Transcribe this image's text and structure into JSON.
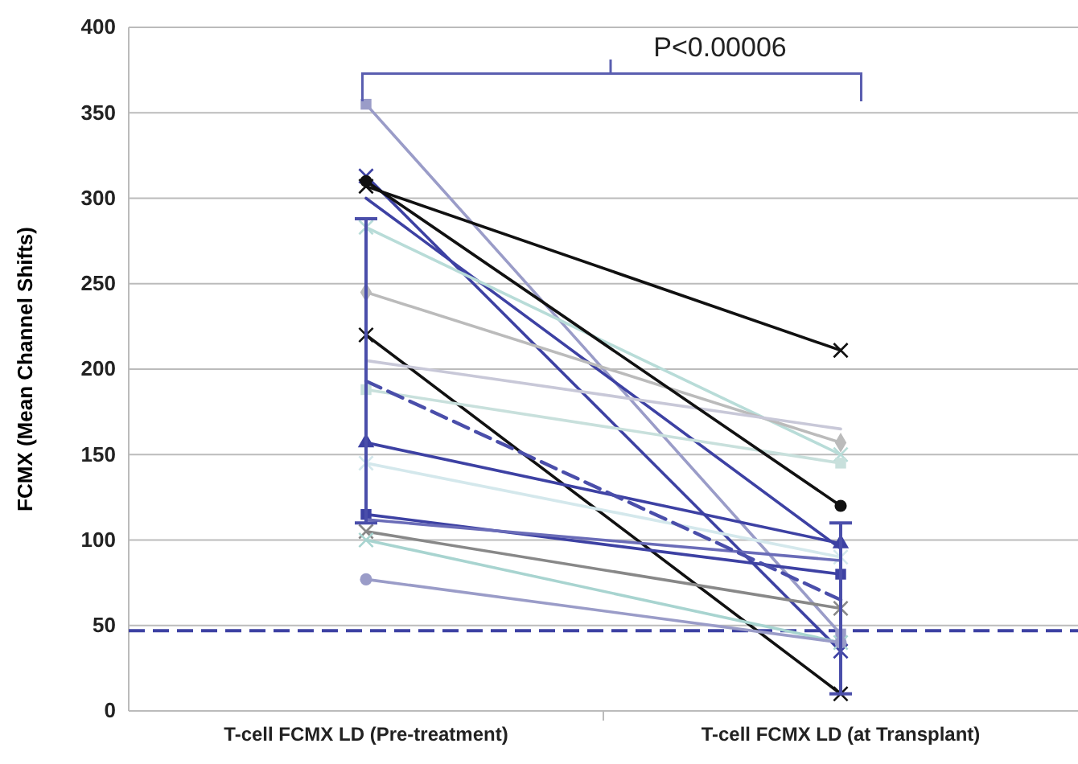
{
  "chart_data": {
    "type": "line",
    "ylabel": "FCMX (Mean Channel Shifts)",
    "categories": [
      "T-cell FCMX LD (Pre-treatment)",
      "T-cell FCMX LD (at Transplant)"
    ],
    "ylim": [
      0,
      400
    ],
    "yticks": [
      0,
      50,
      100,
      150,
      200,
      250,
      300,
      350,
      400
    ],
    "grid": "y",
    "series": [
      {
        "color": "#9a9cc8",
        "values": [
          355,
          45
        ],
        "marker": "square"
      },
      {
        "color": "#3d41a3",
        "values": [
          313,
          35
        ],
        "marker": "cross"
      },
      {
        "color": "#111111",
        "values": [
          307,
          211
        ],
        "marker": "cross"
      },
      {
        "color": "#3d41a3",
        "values": [
          300,
          95
        ],
        "marker": "none"
      },
      {
        "color": "#b8dcd8",
        "values": [
          283,
          150
        ],
        "marker": "cross"
      },
      {
        "color": "#bbbbbb",
        "values": [
          245,
          157
        ],
        "marker": "diamond"
      },
      {
        "color": "#111111",
        "values": [
          220,
          10
        ],
        "marker": "cross"
      },
      {
        "color": "#c8c8d8",
        "values": [
          205,
          165
        ],
        "marker": "none"
      },
      {
        "color": "#c8e0dc",
        "values": [
          188,
          145
        ],
        "marker": "square"
      },
      {
        "color": "#3d41a3",
        "values": [
          157,
          98
        ],
        "marker": "triangle"
      },
      {
        "color": "#d4e8ec",
        "values": [
          145,
          90
        ],
        "marker": "cross"
      },
      {
        "color": "#3d41a3",
        "values": [
          115,
          80
        ],
        "marker": "square"
      },
      {
        "color": "#6a6cb8",
        "values": [
          112,
          88
        ],
        "marker": "none"
      },
      {
        "color": "#888888",
        "values": [
          105,
          60
        ],
        "marker": "cross"
      },
      {
        "color": "#a8d4d0",
        "values": [
          100,
          40
        ],
        "marker": "cross"
      },
      {
        "color": "#9a9cc8",
        "values": [
          77,
          40
        ],
        "marker": "circle"
      },
      {
        "color": "#111111",
        "values": [
          310,
          120
        ],
        "marker": "circle"
      },
      {
        "color": "#4a4eaa",
        "values": [
          193,
          65
        ],
        "marker": "none",
        "line_style": "dashed",
        "errors": [
          [
            110,
            288
          ],
          [
            10,
            110
          ]
        ]
      }
    ],
    "ref_lines": [
      {
        "axis": "y",
        "value": 47,
        "color": "#3d41a3",
        "line_style": "dashed"
      }
    ],
    "annotations": [
      "P<0.00006"
    ]
  }
}
